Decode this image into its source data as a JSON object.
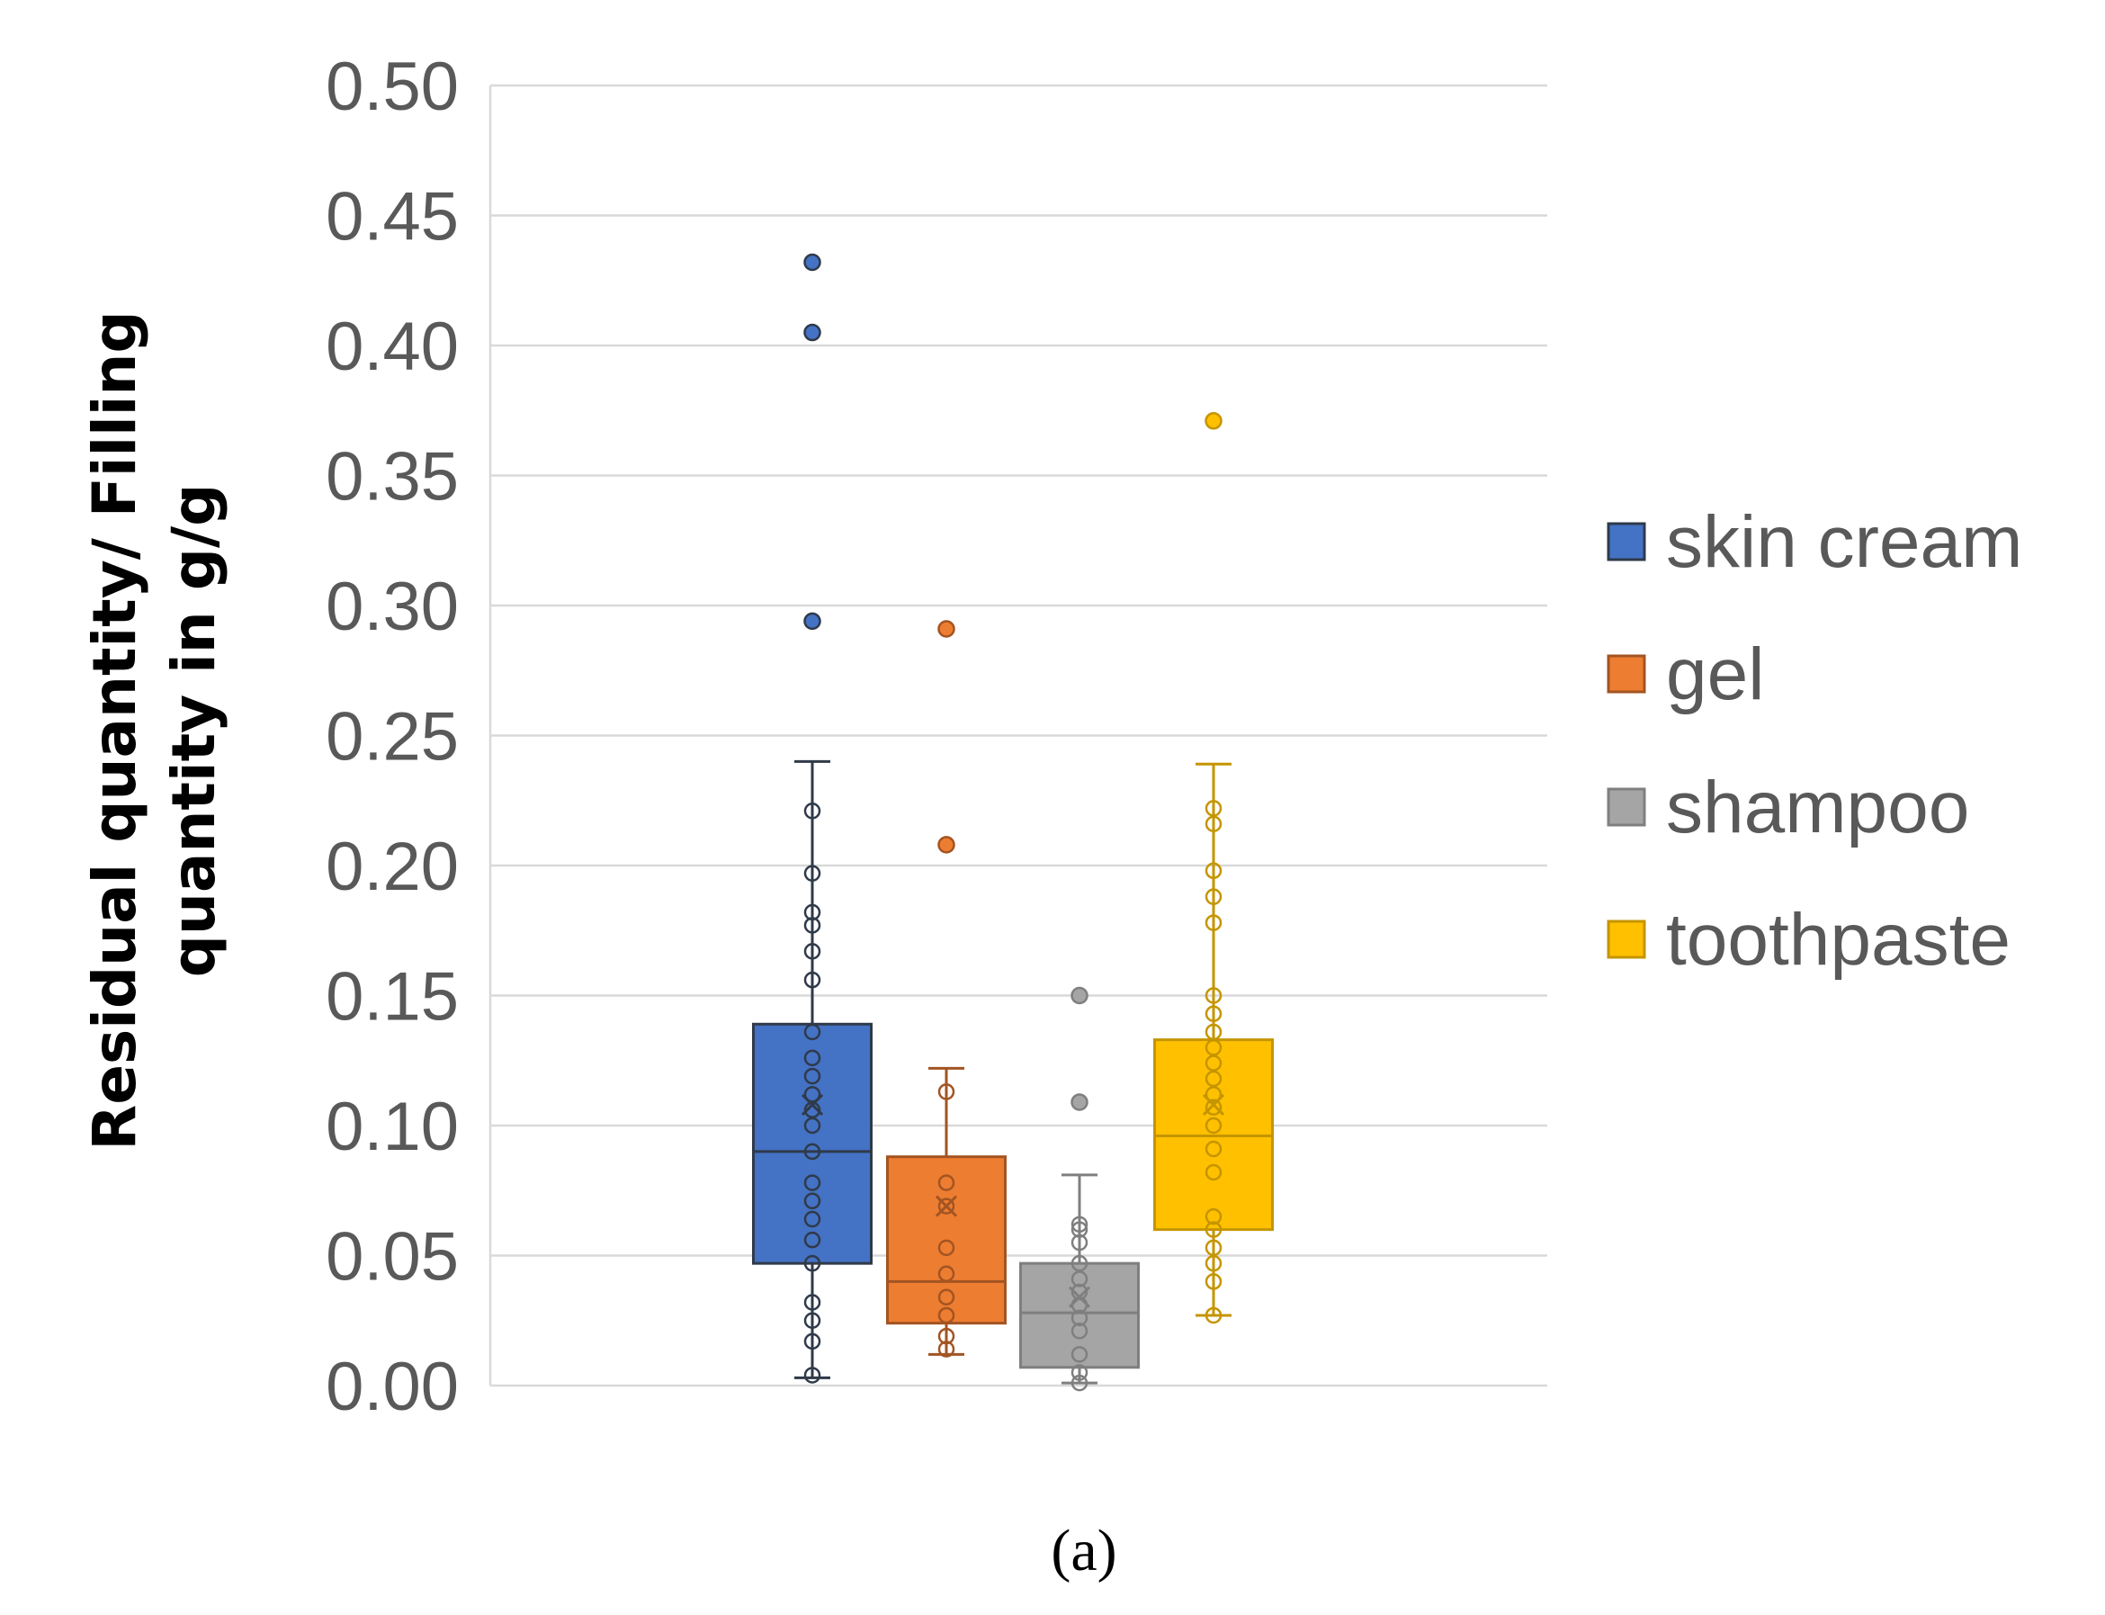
{
  "caption": "(a)",
  "chart_data": {
    "type": "box",
    "title": "",
    "xlabel": "",
    "ylabel": "Residual quantity/ Filling quantity in g/g",
    "ylabel_lines": [
      "Residual quantity/ Filling",
      "quantity in g/g"
    ],
    "ylim": [
      0,
      0.5
    ],
    "yticks": [
      0.0,
      0.05,
      0.1,
      0.15,
      0.2,
      0.25,
      0.3,
      0.35,
      0.4,
      0.45,
      0.5
    ],
    "ytick_labels": [
      "0.00",
      "0.05",
      "0.10",
      "0.15",
      "0.20",
      "0.25",
      "0.30",
      "0.35",
      "0.40",
      "0.45",
      "0.50"
    ],
    "grid": true,
    "legend_position": "right",
    "series": [
      {
        "name": "skin cream",
        "color": "#4472C4",
        "stroke": "#2F3A4A",
        "min": 0.003,
        "q1": 0.047,
        "median": 0.09,
        "q3": 0.139,
        "max": 0.24,
        "mean": 0.108,
        "points": [
          0.004,
          0.017,
          0.025,
          0.032,
          0.047,
          0.056,
          0.064,
          0.071,
          0.078,
          0.09,
          0.1,
          0.106,
          0.112,
          0.119,
          0.126,
          0.136,
          0.156,
          0.167,
          0.177,
          0.182,
          0.197,
          0.221
        ],
        "outliers": [
          0.294,
          0.405,
          0.432
        ]
      },
      {
        "name": "gel",
        "color": "#ED7D31",
        "stroke": "#A35422",
        "min": 0.012,
        "q1": 0.024,
        "median": 0.04,
        "q3": 0.088,
        "max": 0.122,
        "mean": 0.069,
        "points": [
          0.014,
          0.019,
          0.027,
          0.034,
          0.043,
          0.053,
          0.069,
          0.078,
          0.113
        ],
        "outliers": [
          0.208,
          0.291
        ]
      },
      {
        "name": "shampoo",
        "color": "#A5A5A5",
        "stroke": "#7F7F7F",
        "min": 0.001,
        "q1": 0.007,
        "median": 0.028,
        "q3": 0.047,
        "max": 0.081,
        "mean": 0.034,
        "points": [
          0.001,
          0.005,
          0.012,
          0.021,
          0.026,
          0.031,
          0.036,
          0.041,
          0.047,
          0.055,
          0.06,
          0.062
        ],
        "outliers": [
          0.109,
          0.15
        ]
      },
      {
        "name": "toothpaste",
        "color": "#FFC000",
        "stroke": "#C59500",
        "min": 0.027,
        "q1": 0.06,
        "median": 0.096,
        "q3": 0.133,
        "max": 0.239,
        "mean": 0.108,
        "points": [
          0.027,
          0.04,
          0.047,
          0.053,
          0.06,
          0.065,
          0.082,
          0.091,
          0.1,
          0.107,
          0.112,
          0.118,
          0.124,
          0.13,
          0.136,
          0.143,
          0.15,
          0.178,
          0.188,
          0.198,
          0.216,
          0.222
        ],
        "outliers": [
          0.371
        ]
      }
    ]
  }
}
